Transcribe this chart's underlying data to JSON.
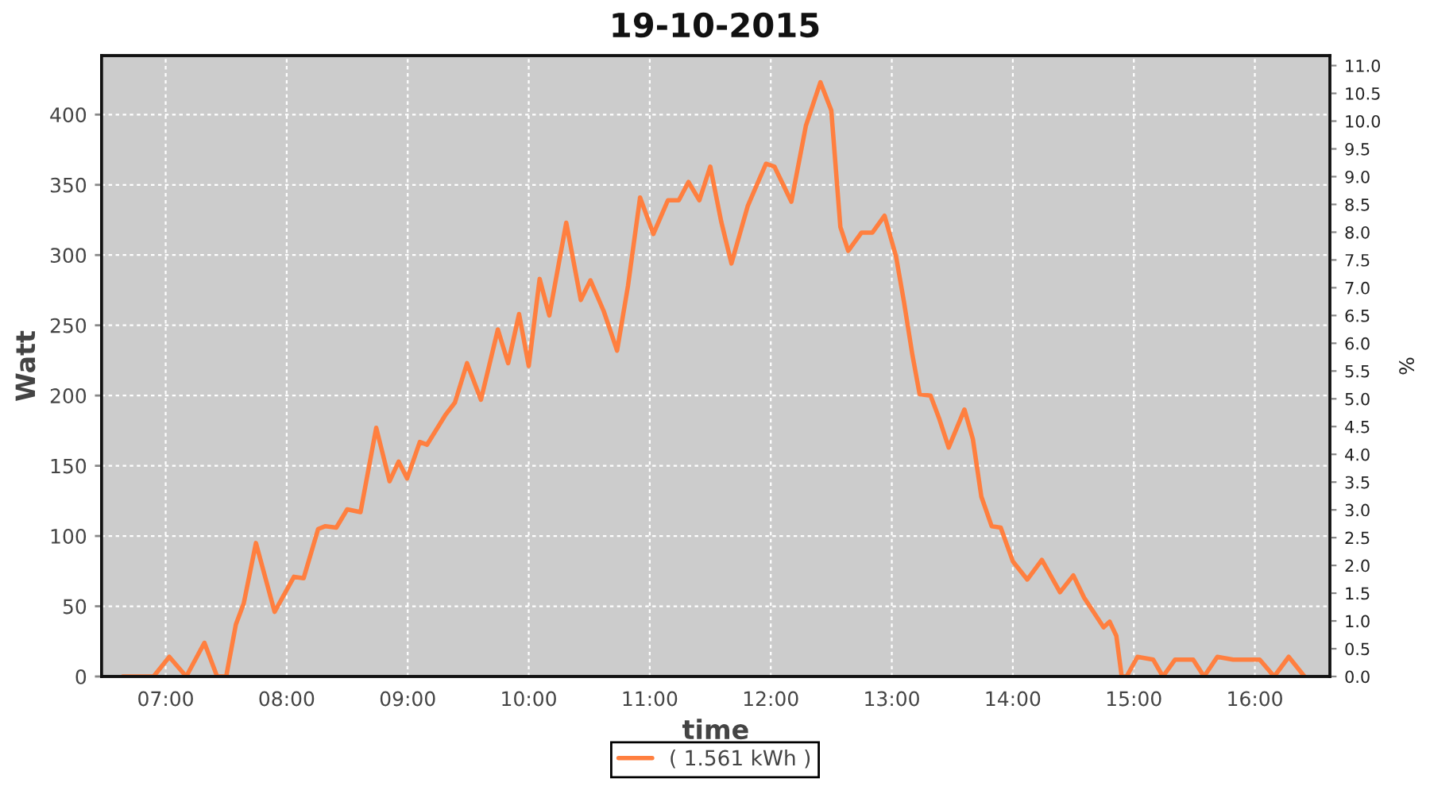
{
  "chart_data": {
    "type": "line",
    "title": "19-10-2015",
    "xlabel": "time",
    "ylabel": "Watt",
    "y2label": "%",
    "x": [
      6.645,
      6.9,
      7.03,
      7.17,
      7.32,
      7.425,
      7.5,
      7.58,
      7.645,
      7.746,
      7.9,
      8.06,
      8.14,
      8.26,
      8.32,
      8.41,
      8.5,
      8.61,
      8.74,
      8.85,
      8.925,
      8.995,
      9.1,
      9.16,
      9.31,
      9.39,
      9.49,
      9.605,
      9.745,
      9.83,
      9.92,
      10.0,
      10.09,
      10.17,
      10.31,
      10.43,
      10.51,
      10.62,
      10.73,
      10.82,
      10.92,
      11.03,
      11.15,
      11.24,
      11.32,
      11.41,
      11.5,
      11.59,
      11.675,
      11.81,
      11.96,
      12.03,
      12.17,
      12.29,
      12.41,
      12.5,
      12.575,
      12.64,
      12.75,
      12.84,
      12.94,
      13.035,
      13.1,
      13.17,
      13.23,
      13.32,
      13.39,
      13.47,
      13.6,
      13.67,
      13.74,
      13.825,
      13.9,
      14.0,
      14.12,
      14.24,
      14.39,
      14.5,
      14.59,
      14.75,
      14.8,
      14.855,
      14.9,
      14.94,
      15.03,
      15.16,
      15.24,
      15.34,
      15.49,
      15.58,
      15.69,
      15.82,
      16.04,
      16.16,
      16.28,
      16.41
    ],
    "series": [
      {
        "name": "( 1.561 kWh )",
        "color": "#ff7f3f",
        "values": [
          0,
          0,
          14,
          0,
          24,
          0,
          0,
          37,
          52,
          95,
          46,
          71,
          70,
          105,
          107,
          106,
          119,
          117,
          177,
          139,
          153,
          141,
          167,
          165,
          186,
          195,
          223,
          197,
          247,
          223,
          258,
          221,
          283,
          257,
          323,
          268,
          282,
          260,
          232,
          278,
          341,
          315,
          339,
          339,
          352,
          339,
          363,
          324,
          294,
          335,
          365,
          363,
          338,
          392,
          423,
          403,
          320,
          303,
          316,
          316,
          328,
          299,
          267,
          229,
          201,
          200,
          184,
          163,
          190,
          169,
          128,
          107,
          106,
          82,
          69,
          83,
          60,
          72,
          56,
          35,
          39,
          29,
          0,
          0,
          14,
          12,
          0,
          12,
          12,
          0,
          14,
          12,
          12,
          0,
          14,
          0
        ]
      }
    ],
    "xlim": [
      6.47,
      16.62
    ],
    "xticks": [
      {
        "value": 7,
        "label": "07:00"
      },
      {
        "value": 8,
        "label": "08:00"
      },
      {
        "value": 9,
        "label": "09:00"
      },
      {
        "value": 10,
        "label": "10:00"
      },
      {
        "value": 11,
        "label": "11:00"
      },
      {
        "value": 12,
        "label": "12:00"
      },
      {
        "value": 13,
        "label": "13:00"
      },
      {
        "value": 14,
        "label": "14:00"
      },
      {
        "value": 15,
        "label": "15:00"
      },
      {
        "value": 16,
        "label": "16:00"
      }
    ],
    "ylim": [
      0,
      442
    ],
    "yticks": [
      0,
      50,
      100,
      150,
      200,
      250,
      300,
      350,
      400
    ],
    "y2lim": [
      0,
      11.18
    ],
    "y2ticks": [
      {
        "value": 0,
        "label": "0.0"
      },
      {
        "value": 0.5,
        "label": "0.5"
      },
      {
        "value": 1,
        "label": "1.0"
      },
      {
        "value": 1.5,
        "label": "1.5"
      },
      {
        "value": 2,
        "label": "2.0"
      },
      {
        "value": 2.5,
        "label": "2.5"
      },
      {
        "value": 3,
        "label": "3.0"
      },
      {
        "value": 3.5,
        "label": "3.5"
      },
      {
        "value": 4,
        "label": "4.0"
      },
      {
        "value": 4.5,
        "label": "4.5"
      },
      {
        "value": 5,
        "label": "5.0"
      },
      {
        "value": 5.5,
        "label": "5.5"
      },
      {
        "value": 6,
        "label": "6.0"
      },
      {
        "value": 6.5,
        "label": "6.5"
      },
      {
        "value": 7,
        "label": "7.0"
      },
      {
        "value": 7.5,
        "label": "7.5"
      },
      {
        "value": 8,
        "label": "8.0"
      },
      {
        "value": 8.5,
        "label": "8.5"
      },
      {
        "value": 9,
        "label": "9.0"
      },
      {
        "value": 9.5,
        "label": "9.5"
      },
      {
        "value": 10,
        "label": "10.0"
      },
      {
        "value": 10.5,
        "label": "10.5"
      },
      {
        "value": 11,
        "label": "11.0"
      }
    ],
    "grid": true,
    "legend": "bottom",
    "marker": "none",
    "line_style": "solid"
  }
}
